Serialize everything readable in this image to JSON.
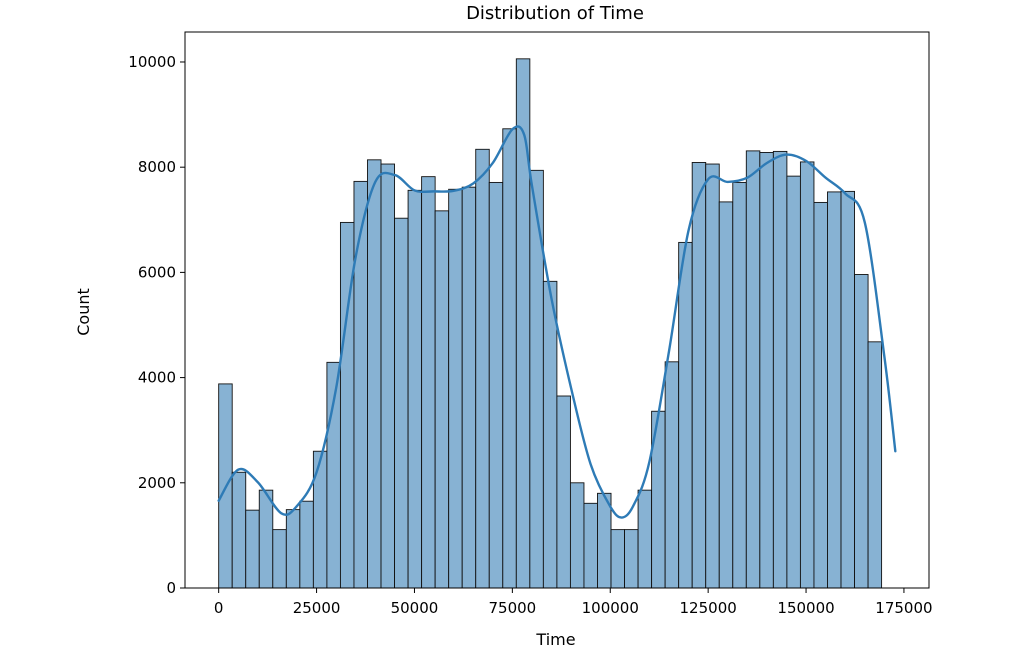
{
  "chart_data": {
    "type": "bar",
    "title": "Distribution of Time",
    "xlabel": "Time",
    "ylabel": "Count",
    "xlim": [
      -8600,
      181400
    ],
    "ylim": [
      0,
      10570
    ],
    "x_ticks": [
      0,
      25000,
      50000,
      75000,
      100000,
      125000,
      150000,
      175000
    ],
    "x_tick_labels": [
      "0",
      "25000",
      "50000",
      "75000",
      "100000",
      "125000",
      "150000",
      "175000"
    ],
    "y_ticks": [
      0,
      2000,
      4000,
      6000,
      8000,
      10000
    ],
    "y_tick_labels": [
      "0",
      "2000",
      "4000",
      "6000",
      "8000",
      "10000"
    ],
    "grid": false,
    "bin_start": 0,
    "bin_width": 3455,
    "counts": [
      3880,
      2200,
      1480,
      1860,
      1110,
      1490,
      1650,
      2600,
      4290,
      6950,
      7730,
      8140,
      8060,
      7030,
      7560,
      7820,
      7170,
      7580,
      7620,
      8340,
      7710,
      8730,
      10060,
      7940,
      5830,
      3650,
      2000,
      1610,
      1800,
      1110,
      1110,
      1860,
      3360,
      4300,
      6570,
      8090,
      8060,
      7340,
      7710,
      8310,
      8280,
      8300,
      7830,
      8100,
      7330,
      7530,
      7540,
      5960,
      4680
    ],
    "kde": {
      "x": [
        0,
        5000,
        10000,
        16000,
        20000,
        25000,
        30000,
        35000,
        40000,
        45000,
        50000,
        55000,
        60000,
        65000,
        70000,
        75000,
        78000,
        80000,
        85000,
        90000,
        95000,
        100000,
        103000,
        106000,
        110000,
        115000,
        120000,
        125000,
        130000,
        135000,
        140000,
        145000,
        150000,
        155000,
        160000,
        165000,
        170000,
        172800
      ],
      "y": [
        1660,
        2250,
        2010,
        1420,
        1560,
        2200,
        3800,
        6300,
        7720,
        7850,
        7560,
        7540,
        7550,
        7690,
        8080,
        8720,
        8620,
        7650,
        5500,
        3800,
        2350,
        1550,
        1340,
        1580,
        2400,
        4500,
        6800,
        7770,
        7720,
        7800,
        8080,
        8240,
        8120,
        7800,
        7500,
        6950,
        4400,
        2600
      ]
    },
    "colors": {
      "bar_fill": "#87b2d3",
      "bar_edge": "#111111",
      "kde_line": "#2e7bb6"
    }
  }
}
